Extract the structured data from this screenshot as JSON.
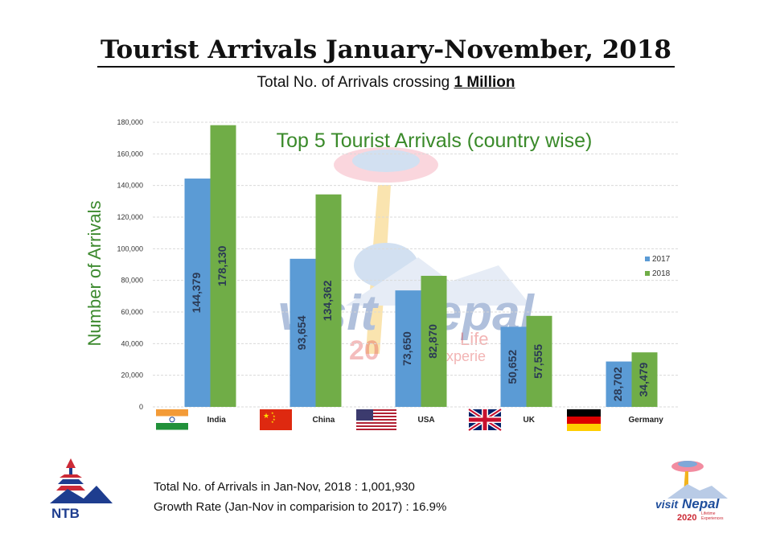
{
  "header": {
    "title": "Tourist Arrivals January-November, 2018",
    "subtitle_prefix": "Total No. of Arrivals crossing ",
    "subtitle_emphasis": "1 Million"
  },
  "chart_data": {
    "type": "bar",
    "title": "Top 5 Tourist Arrivals (country wise)",
    "ylabel": "Number of Arrivals",
    "xlabel": "",
    "ylim": [
      0,
      180000
    ],
    "yticks": [
      0,
      20000,
      40000,
      60000,
      80000,
      100000,
      120000,
      140000,
      160000,
      180000
    ],
    "ytick_labels": [
      "0",
      "20,000",
      "40,000",
      "60,000",
      "80,000",
      "100,000",
      "120,000",
      "140,000",
      "160,000",
      "180,000"
    ],
    "grid": true,
    "legend_position": "right",
    "categories": [
      "India",
      "China",
      "USA",
      "UK",
      "Germany"
    ],
    "series": [
      {
        "name": "2017",
        "color": "#5b9bd5",
        "values": [
          144379,
          93654,
          73650,
          50652,
          28702
        ],
        "labels": [
          "144,379",
          "93,654",
          "73,650",
          "50,652",
          "28,702"
        ]
      },
      {
        "name": "2018",
        "color": "#70ad47",
        "values": [
          178130,
          134362,
          82870,
          57555,
          34479
        ],
        "labels": [
          "178,130",
          "134,362",
          "82,870",
          "57,555",
          "34,479"
        ]
      }
    ]
  },
  "flags": [
    "india-flag-icon",
    "china-flag-icon",
    "usa-flag-icon",
    "uk-flag-icon",
    "germany-flag-icon"
  ],
  "watermark": {
    "logo": "visit-nepal-watermark-icon",
    "text_lines": [
      "Life",
      "Experie",
      "20"
    ]
  },
  "footer": {
    "total_line": "Total No. of Arrivals in Jan-Nov, 2018 : 1,001,930",
    "growth_line": "Growth Rate (Jan-Nov in comparision to 2017) : 16.9%"
  },
  "logos": {
    "left_text": "NTB",
    "left_icon": "ntb-logo-icon",
    "right_icon": "visit-nepal-2020-logo-icon",
    "right_lines": [
      "visit",
      "Nepal",
      "2020",
      "Lifetime",
      "Experiences"
    ]
  }
}
